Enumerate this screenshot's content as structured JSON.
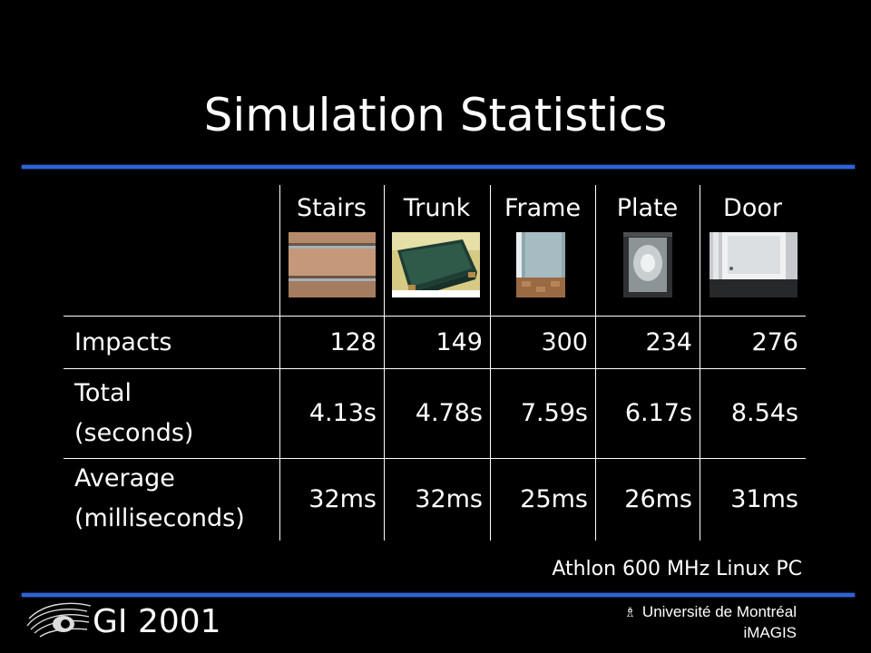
{
  "slide": {
    "title": "Simulation Statistics",
    "columns": [
      "Stairs",
      "Trunk",
      "Frame",
      "Plate",
      "Door"
    ],
    "thumbnails": [
      "stairs-image",
      "trunk-image",
      "frame-image",
      "plate-image",
      "door-image"
    ],
    "rows": [
      {
        "label_lines": [
          "Impacts"
        ],
        "values": [
          "128",
          "149",
          "300",
          "234",
          "276"
        ]
      },
      {
        "label_lines": [
          "Total",
          "(seconds)"
        ],
        "values": [
          "4.13s",
          "4.78s",
          "7.59s",
          "6.17s",
          "8.54s"
        ]
      },
      {
        "label_lines": [
          "Average",
          "(milliseconds)"
        ],
        "values": [
          "32ms",
          "32ms",
          "25ms",
          "26ms",
          "31ms"
        ]
      }
    ],
    "footnote": "Athlon 600 MHz Linux PC"
  },
  "footer": {
    "conference": "GI 2001",
    "university": "Université de Montréal",
    "lab": "iMAGIS"
  },
  "colors": {
    "background": "#000000",
    "rule": "#2f63d6",
    "text": "#ffffff"
  }
}
